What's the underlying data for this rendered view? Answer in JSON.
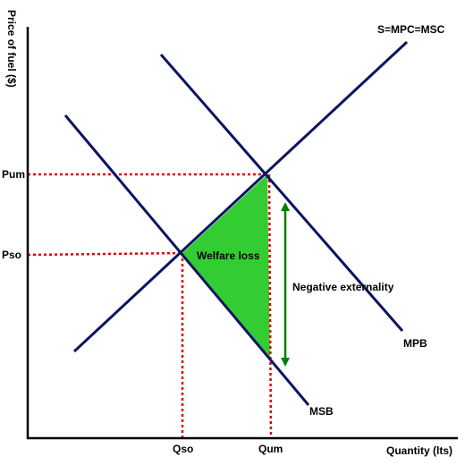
{
  "axes": {
    "y_label": "Price of fuel ($)",
    "x_label": "Quantity (lts)"
  },
  "price_ticks": {
    "pum": "Pum",
    "pso": "Pso"
  },
  "quantity_ticks": {
    "qso": "Qso",
    "qum": "Qum"
  },
  "curves": {
    "supply": "S=MPC=MSC",
    "mpb": "MPB",
    "msb": "MSB"
  },
  "annotations": {
    "welfare_loss": "Welfare loss",
    "negative_externality": "Negative externality"
  },
  "colors": {
    "curve": "#0a1560",
    "guide": "#e00000",
    "welfare_fill": "#33cc33",
    "arrow": "#008000",
    "axis": "#000000"
  }
}
